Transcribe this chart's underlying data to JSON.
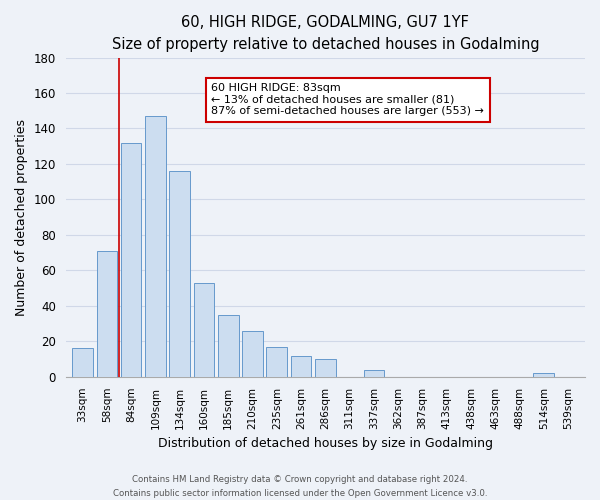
{
  "title": "60, HIGH RIDGE, GODALMING, GU7 1YF",
  "subtitle": "Size of property relative to detached houses in Godalming",
  "xlabel": "Distribution of detached houses by size in Godalming",
  "ylabel": "Number of detached properties",
  "bar_color": "#ccddf0",
  "bar_edge_color": "#6699cc",
  "categories": [
    "33sqm",
    "58sqm",
    "84sqm",
    "109sqm",
    "134sqm",
    "160sqm",
    "185sqm",
    "210sqm",
    "235sqm",
    "261sqm",
    "286sqm",
    "311sqm",
    "337sqm",
    "362sqm",
    "387sqm",
    "413sqm",
    "438sqm",
    "463sqm",
    "488sqm",
    "514sqm",
    "539sqm"
  ],
  "values": [
    16,
    71,
    132,
    147,
    116,
    53,
    35,
    26,
    17,
    12,
    10,
    0,
    4,
    0,
    0,
    0,
    0,
    0,
    0,
    2,
    0
  ],
  "ylim": [
    0,
    180
  ],
  "yticks": [
    0,
    20,
    40,
    60,
    80,
    100,
    120,
    140,
    160,
    180
  ],
  "vline_x": 1.5,
  "vline_color": "#cc0000",
  "annotation_title": "60 HIGH RIDGE: 83sqm",
  "annotation_line1": "← 13% of detached houses are smaller (81)",
  "annotation_line2": "87% of semi-detached houses are larger (553) →",
  "annotation_box_color": "#ffffff",
  "annotation_box_edge": "#cc0000",
  "footer1": "Contains HM Land Registry data © Crown copyright and database right 2024.",
  "footer2": "Contains public sector information licensed under the Open Government Licence v3.0.",
  "background_color": "#eef2f8",
  "plot_background": "#eef2f8",
  "grid_color": "#d0d8e8"
}
